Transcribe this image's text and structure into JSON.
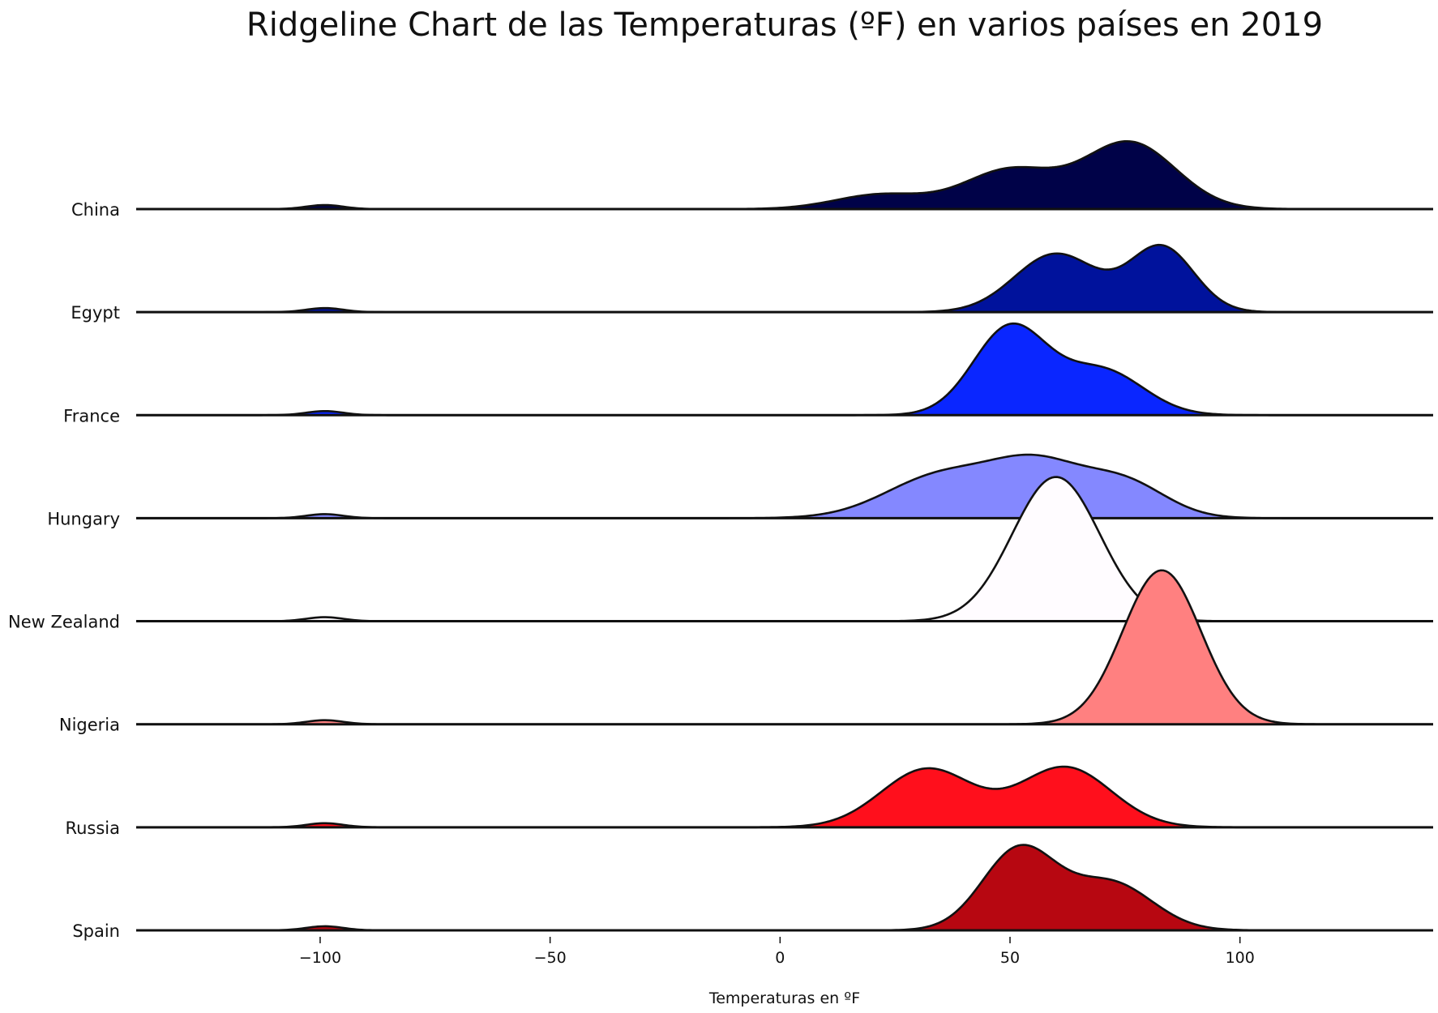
{
  "chart_data": {
    "type": "area",
    "title": "Ridgeline Chart de las Temperaturas (ºF) en varios países en 2019",
    "xlabel": "Temperaturas en ºF",
    "ylabel": "",
    "xlim": [
      -140,
      142
    ],
    "xticks": [
      -100,
      -50,
      0,
      50,
      100
    ],
    "xtick_labels": [
      "−100",
      "−50",
      "0",
      "50",
      "100"
    ],
    "grid": false,
    "legend": "none",
    "series": [
      {
        "name": "China",
        "color": "#000248",
        "outlier_bump": {
          "mean": -99,
          "sd": 4,
          "amp": 5
        },
        "components": [
          {
            "mean": 22,
            "sd": 10,
            "amp": 18
          },
          {
            "mean": 50,
            "sd": 10,
            "amp": 48
          },
          {
            "mean": 76,
            "sd": 10,
            "amp": 82
          }
        ]
      },
      {
        "name": "Egypt",
        "color": "#00129c",
        "outlier_bump": {
          "mean": -99,
          "sd": 4,
          "amp": 5
        },
        "components": [
          {
            "mean": 60,
            "sd": 9,
            "amp": 72
          },
          {
            "mean": 83,
            "sd": 7,
            "amp": 80
          }
        ]
      },
      {
        "name": "France",
        "color": "#0a26ff",
        "outlier_bump": {
          "mean": -99,
          "sd": 4,
          "amp": 5
        },
        "components": [
          {
            "mean": 50,
            "sd": 8,
            "amp": 108
          },
          {
            "mean": 70,
            "sd": 9,
            "amp": 55
          }
        ]
      },
      {
        "name": "Hungary",
        "color": "#8488ff",
        "outlier_bump": {
          "mean": -99,
          "sd": 4,
          "amp": 5
        },
        "components": [
          {
            "mean": 35,
            "sd": 12,
            "amp": 52
          },
          {
            "mean": 56,
            "sd": 10,
            "amp": 62
          },
          {
            "mean": 75,
            "sd": 9,
            "amp": 42
          }
        ]
      },
      {
        "name": "New Zealand",
        "color": "#fffcff",
        "outlier_bump": {
          "mean": -99,
          "sd": 4,
          "amp": 5
        },
        "components": [
          {
            "mean": 60,
            "sd": 9.5,
            "amp": 178
          }
        ]
      },
      {
        "name": "Nigeria",
        "color": "#ff8080",
        "outlier_bump": {
          "mean": -99,
          "sd": 4,
          "amp": 5
        },
        "components": [
          {
            "mean": 83,
            "sd": 8.5,
            "amp": 190
          }
        ]
      },
      {
        "name": "Russia",
        "color": "#ff0f1c",
        "outlier_bump": {
          "mean": -99,
          "sd": 4,
          "amp": 5
        },
        "components": [
          {
            "mean": 32,
            "sd": 10,
            "amp": 72
          },
          {
            "mean": 62,
            "sd": 10,
            "amp": 74
          }
        ]
      },
      {
        "name": "Spain",
        "color": "#b70711",
        "outlier_bump": {
          "mean": -99,
          "sd": 4,
          "amp": 5
        },
        "components": [
          {
            "mean": 52,
            "sd": 8,
            "amp": 100
          },
          {
            "mean": 72,
            "sd": 9,
            "amp": 58
          }
        ]
      }
    ]
  }
}
